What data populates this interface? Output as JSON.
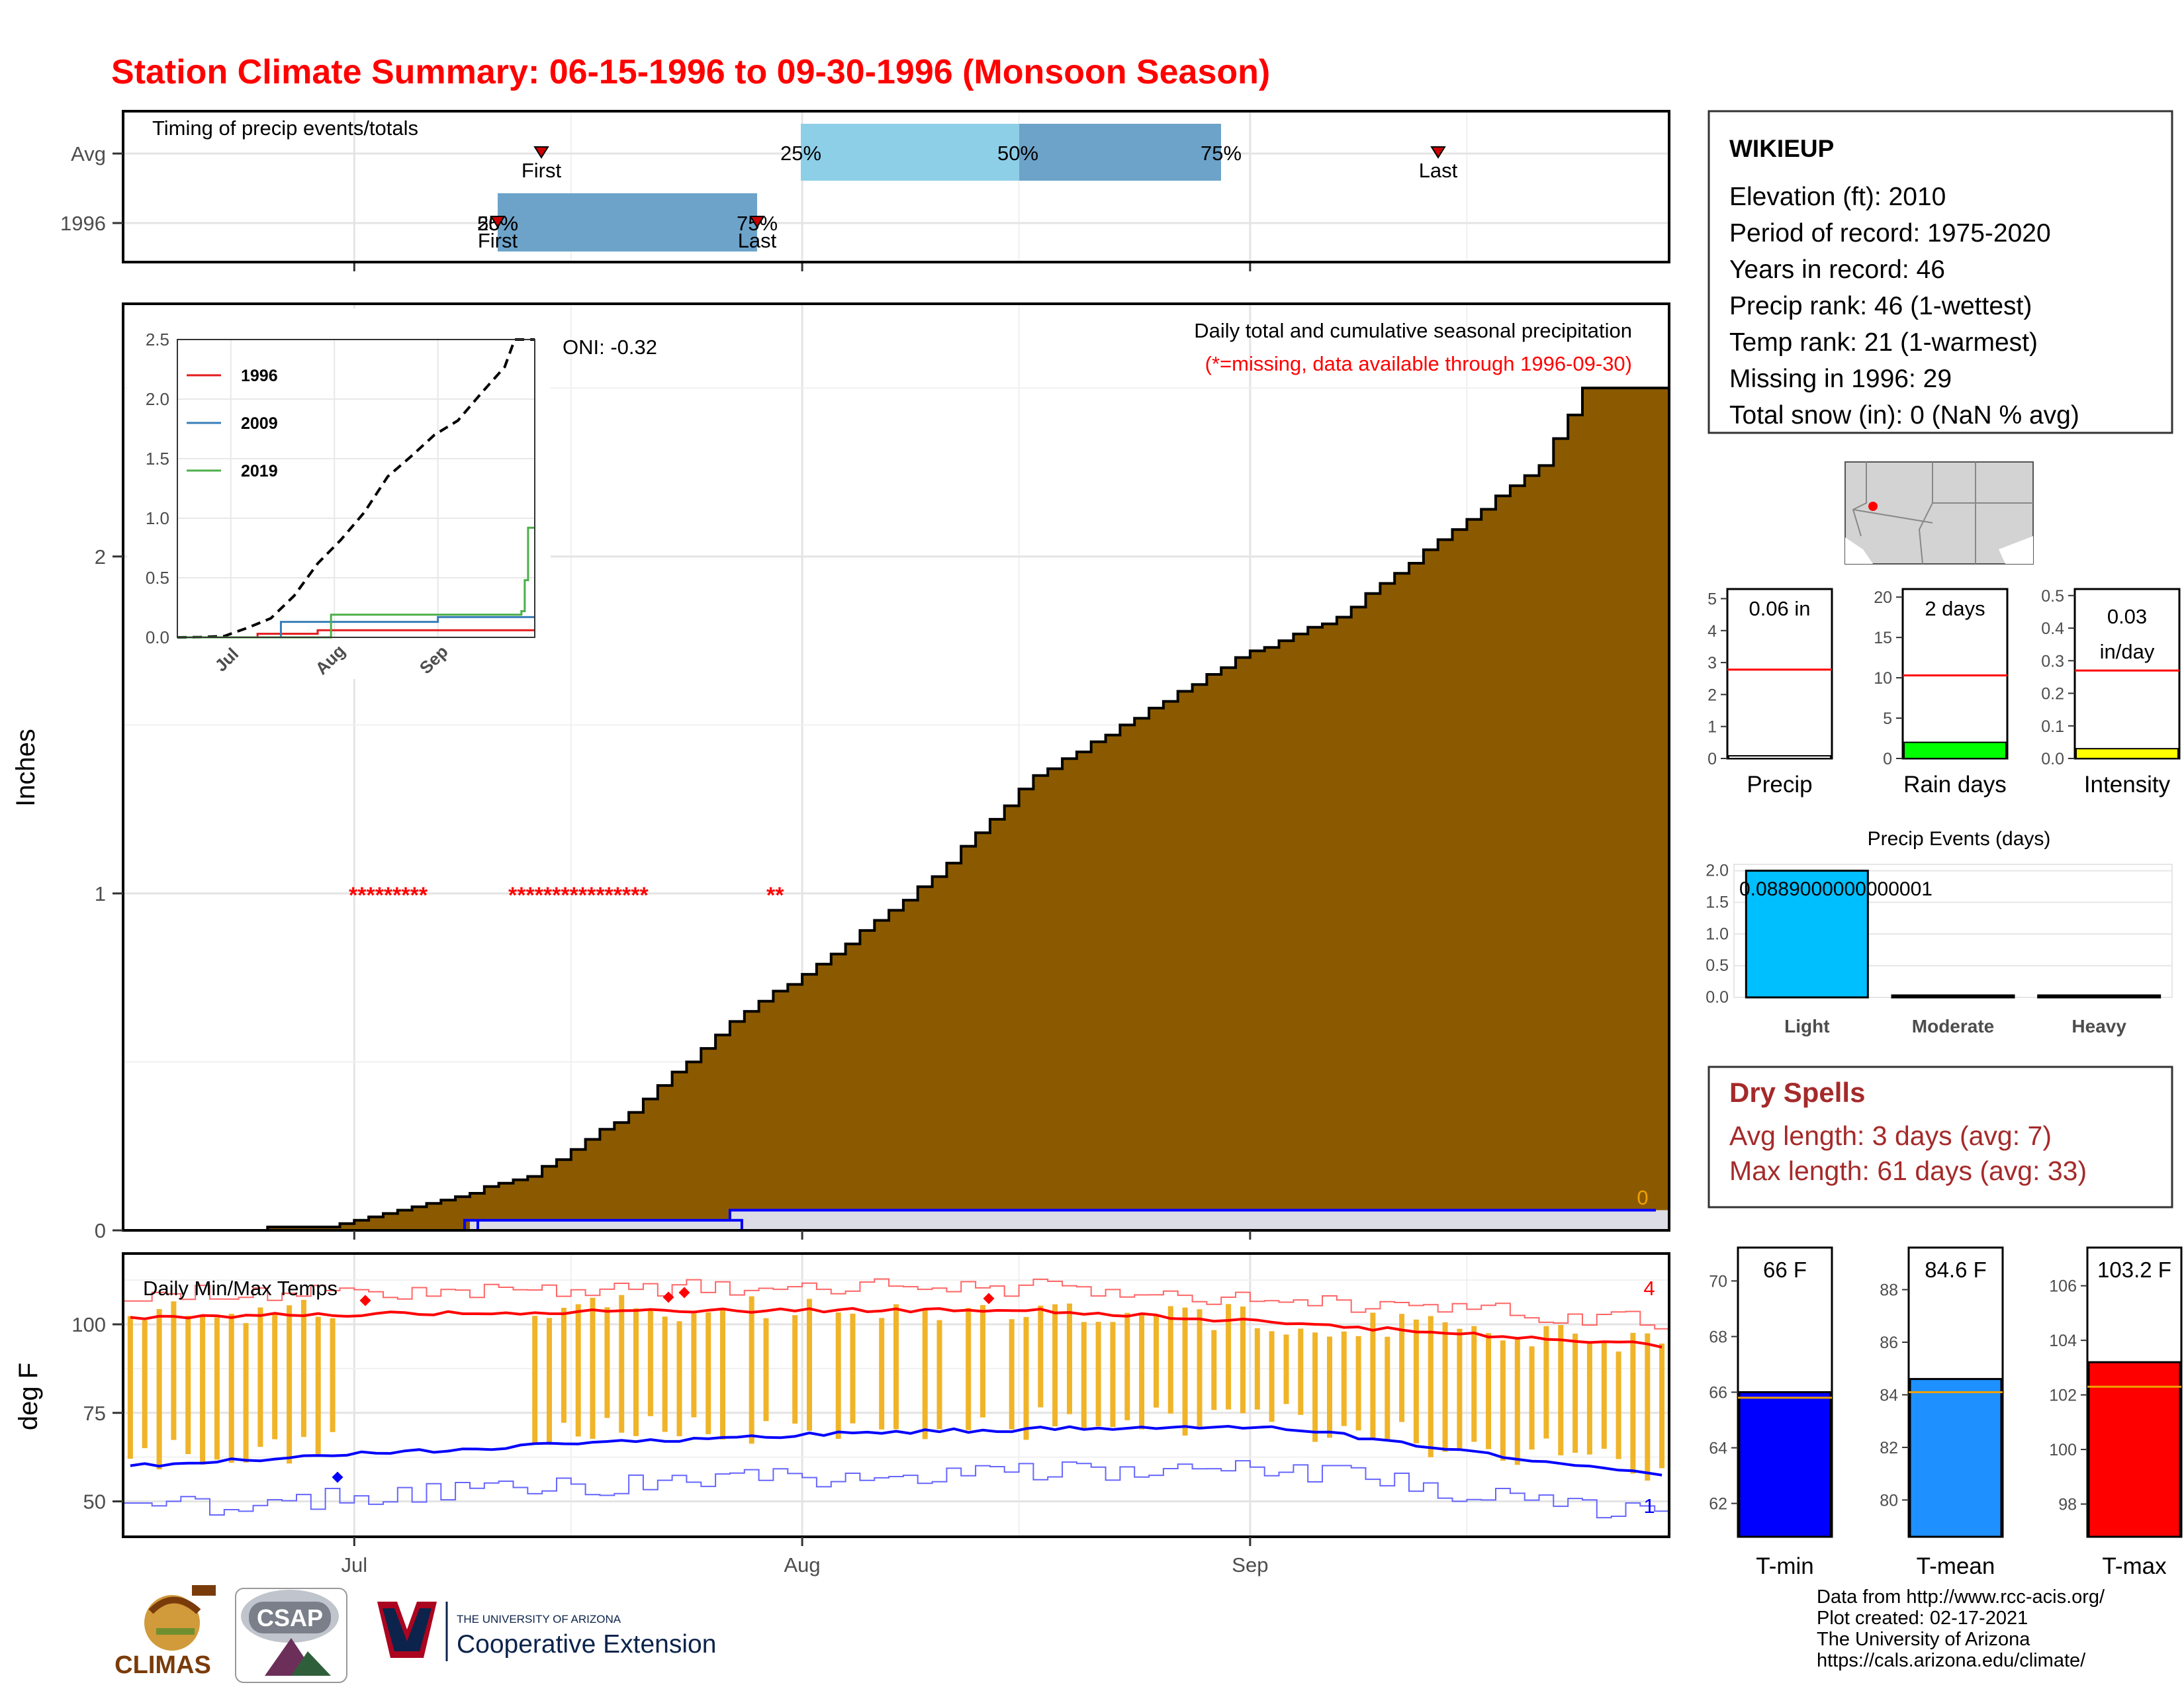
{
  "title": "Station Climate Summary: 06-15-1996 to 09-30-1996 (Monsoon Season)",
  "colors": {
    "title": "#ff0000",
    "precip_fill": "#8b5a00",
    "avg_timing": "#8ecfe8",
    "avg_timing_mid": "#6ea3c9",
    "year_timing": "#6ea3c9",
    "tmax_bar": "#f0b429",
    "tmax_line": "#ff0000",
    "tmin_line": "#0000ff",
    "dry_spells": "#a52a2a"
  },
  "x_axis": {
    "ticks": [
      "Jul",
      "Aug",
      "Sep"
    ]
  },
  "timing_panel": {
    "label": "Timing of precip events/totals",
    "rows": [
      "Avg",
      "1996"
    ],
    "avg": {
      "first_label": "First",
      "last_label": "Last",
      "p25": "25%",
      "p50": "50%",
      "p75": "75%"
    },
    "year": {
      "first_label": "First",
      "last_label": "Last",
      "p_left": "25%",
      "p_left_overlap": "50%",
      "p_right": "75%"
    }
  },
  "precip_panel": {
    "title": "Daily total and cumulative seasonal precipitation",
    "subtitle": "(*=missing, data available through 1996-09-30)",
    "ylabel": "Inches",
    "yticks": [
      "0",
      "1",
      "2"
    ],
    "missing_markers": [
      "*********",
      "****************",
      "**"
    ],
    "end_label": "0",
    "inset": {
      "oni": "ONI: -0.32",
      "yticks": [
        "0.0",
        "0.5",
        "1.0",
        "1.5",
        "2.0",
        "2.5"
      ],
      "xticks": [
        "Jul",
        "Aug",
        "Sep"
      ],
      "legend": [
        "1996",
        "2009",
        "2019"
      ],
      "legend_colors": [
        "#e41a1c",
        "#377eb8",
        "#4daf4a"
      ]
    }
  },
  "temp_panel": {
    "label": "Daily Min/Max Temps",
    "ylabel": "deg F",
    "yticks": [
      "50",
      "75",
      "100"
    ],
    "max_count": "4",
    "min_count": "1"
  },
  "station": {
    "name": "WIKIEUP",
    "lines": [
      "Elevation (ft): 2010",
      "Period of record: 1975-2020",
      "Years in record: 46",
      "Precip rank: 46 (1-wettest)",
      "Temp rank: 21 (1-warmest)",
      "Missing in 1996: 29",
      "Total snow (in): 0 (NaN % avg)"
    ]
  },
  "mini_bars": [
    {
      "label": "Precip",
      "value_label": "0.06 in",
      "yticks": [
        "0",
        "1",
        "2",
        "3",
        "4",
        "5"
      ],
      "ymax": 5.3,
      "value": 0.06,
      "avg": 2.78,
      "color": "#ffffff"
    },
    {
      "label": "Rain days",
      "value_label": "2 days",
      "yticks": [
        "0",
        "5",
        "10",
        "15",
        "20"
      ],
      "ymax": 21,
      "value": 2,
      "avg": 10.3,
      "color": "#00ff00"
    },
    {
      "label": "Intensity",
      "value_label": "0.03 in/day",
      "yticks": [
        "0.0",
        "0.1",
        "0.2",
        "0.3",
        "0.4",
        "0.5"
      ],
      "ymax": 0.52,
      "value": 0.03,
      "avg": 0.27,
      "color": "#ffff00"
    }
  ],
  "events": {
    "title": "Precip Events (days)",
    "categories": [
      "Light",
      "Moderate",
      "Heavy"
    ],
    "values": [
      2,
      0,
      0
    ],
    "yticks": [
      "0.0",
      "0.5",
      "1.0",
      "1.5",
      "2.0"
    ],
    "overlay": "0.0889000000000001",
    "color": "#00bfff"
  },
  "dry_spells": {
    "title": "Dry Spells",
    "avg": "Avg length: 3 days (avg: 7)",
    "max": "Max length: 61 days (avg: 33)"
  },
  "temp_bars": [
    {
      "label": "T-min",
      "value_label": "66 F",
      "yticks": [
        "62",
        "64",
        "66",
        "68",
        "70"
      ],
      "range": [
        60.8,
        71.2
      ],
      "value": 66,
      "avg": 65.8,
      "color": "#0000ff"
    },
    {
      "label": "T-mean",
      "value_label": "84.6 F",
      "yticks": [
        "80",
        "82",
        "84",
        "86",
        "88"
      ],
      "range": [
        78.6,
        89.6
      ],
      "value": 84.6,
      "avg": 84.1,
      "color": "#1e90ff"
    },
    {
      "label": "T-max",
      "value_label": "103.2 F",
      "yticks": [
        "98",
        "100",
        "102",
        "104",
        "106"
      ],
      "range": [
        96.8,
        107.4
      ],
      "value": 103.2,
      "avg": 102.3,
      "color": "#ff0000"
    }
  ],
  "footer": [
    "Data from http://www.rcc-acis.org/",
    "Plot created: 02-17-2021",
    "The University of Arizona",
    "https://cals.arizona.edu/climate/"
  ],
  "logos": {
    "climas": "CLIMAS",
    "csap": "CSAP",
    "ua_small": "THE UNIVERSITY OF ARIZONA",
    "ua_big": "Cooperative Extension"
  },
  "chart_data": [
    {
      "type": "area",
      "title": "Daily total and cumulative seasonal precipitation",
      "ylabel": "Inches",
      "x_range": [
        "1996-06-15",
        "1996-09-30"
      ],
      "ylim": [
        0,
        2.75
      ],
      "series": [
        {
          "name": "1996",
          "x": [
            "1996-07-09",
            "1996-07-27",
            "1996-09-30"
          ],
          "y": [
            0.03,
            0.06,
            0.06
          ]
        }
      ],
      "avg_cumulative": {
        "x": [
          "1996-06-15",
          "1996-06-22",
          "1996-06-29",
          "1996-07-01",
          "1996-07-06",
          "1996-07-13",
          "1996-07-20",
          "1996-07-27",
          "1996-08-03",
          "1996-08-10",
          "1996-08-17",
          "1996-08-24",
          "1996-08-31",
          "1996-09-07",
          "1996-09-14",
          "1996-09-21",
          "1996-09-24",
          "1996-09-30"
        ],
        "y": [
          0.0,
          0.002,
          0.01,
          0.03,
          0.08,
          0.16,
          0.35,
          0.62,
          0.82,
          1.05,
          1.35,
          1.52,
          1.7,
          1.82,
          2.05,
          2.27,
          2.5,
          2.5
        ]
      }
    },
    {
      "type": "line",
      "title": "Daily Min/Max Temps",
      "ylabel": "deg F",
      "x_range": [
        "1996-06-15",
        "1996-09-30"
      ],
      "series": [
        {
          "name": "avg max",
          "y_start": 102,
          "y_mid": 103,
          "y_end": 95
        },
        {
          "name": "avg min",
          "y_start": 60,
          "y_mid": 71,
          "y_end": 56
        }
      ],
      "tmax_range": [
        90,
        111
      ],
      "tmin_range": [
        50,
        76
      ]
    }
  ]
}
